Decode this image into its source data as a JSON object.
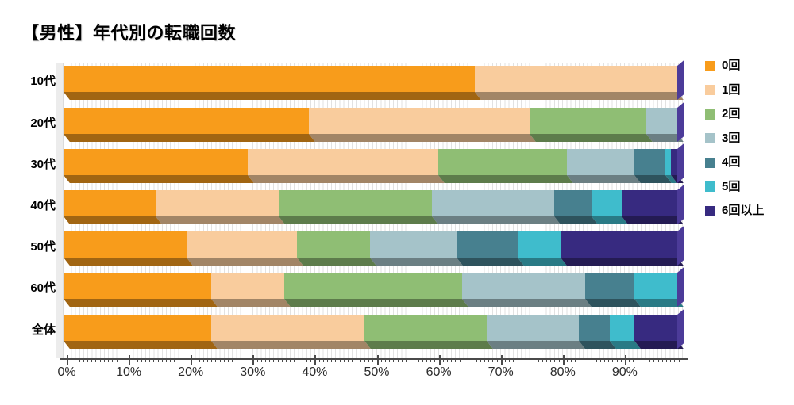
{
  "title": "【男性】年代別の転職回数",
  "chart_data": {
    "type": "bar",
    "stacked": true,
    "orientation": "horizontal",
    "unit": "percent",
    "title": "【男性】年代別の転職回数",
    "categories": [
      "10代",
      "20代",
      "30代",
      "40代",
      "50代",
      "60代",
      "全体"
    ],
    "series": [
      {
        "name": "0回",
        "color": "#F89C1B",
        "values": [
          67,
          40,
          30,
          15,
          20,
          24,
          24
        ]
      },
      {
        "name": "1回",
        "color": "#F9CC9D",
        "values": [
          33,
          36,
          31,
          20,
          18,
          12,
          25
        ]
      },
      {
        "name": "2回",
        "color": "#8FBE74",
        "values": [
          0,
          19,
          21,
          25,
          12,
          29,
          20
        ]
      },
      {
        "name": "3回",
        "color": "#A5C3C9",
        "values": [
          0,
          5,
          11,
          20,
          14,
          20,
          15
        ]
      },
      {
        "name": "4回",
        "color": "#47808F",
        "values": [
          0,
          0,
          5,
          6,
          10,
          8,
          5
        ]
      },
      {
        "name": "5回",
        "color": "#3FBCCC",
        "values": [
          0,
          0,
          1,
          5,
          7,
          7,
          4
        ]
      },
      {
        "name": "6回以上",
        "color": "#372A80",
        "values": [
          0,
          0,
          1,
          9,
          19,
          0,
          7
        ]
      }
    ],
    "x_ticks": [
      "0%",
      "10%",
      "20%",
      "30%",
      "40%",
      "50%",
      "60%",
      "70%",
      "80%",
      "90%"
    ],
    "xlim": [
      0,
      100
    ],
    "grid": true,
    "legend_position": "right",
    "colors": {
      "end_cap": "#4C3B99",
      "axis": "#4a4a4a",
      "gridline": "#e2e2e2"
    }
  }
}
